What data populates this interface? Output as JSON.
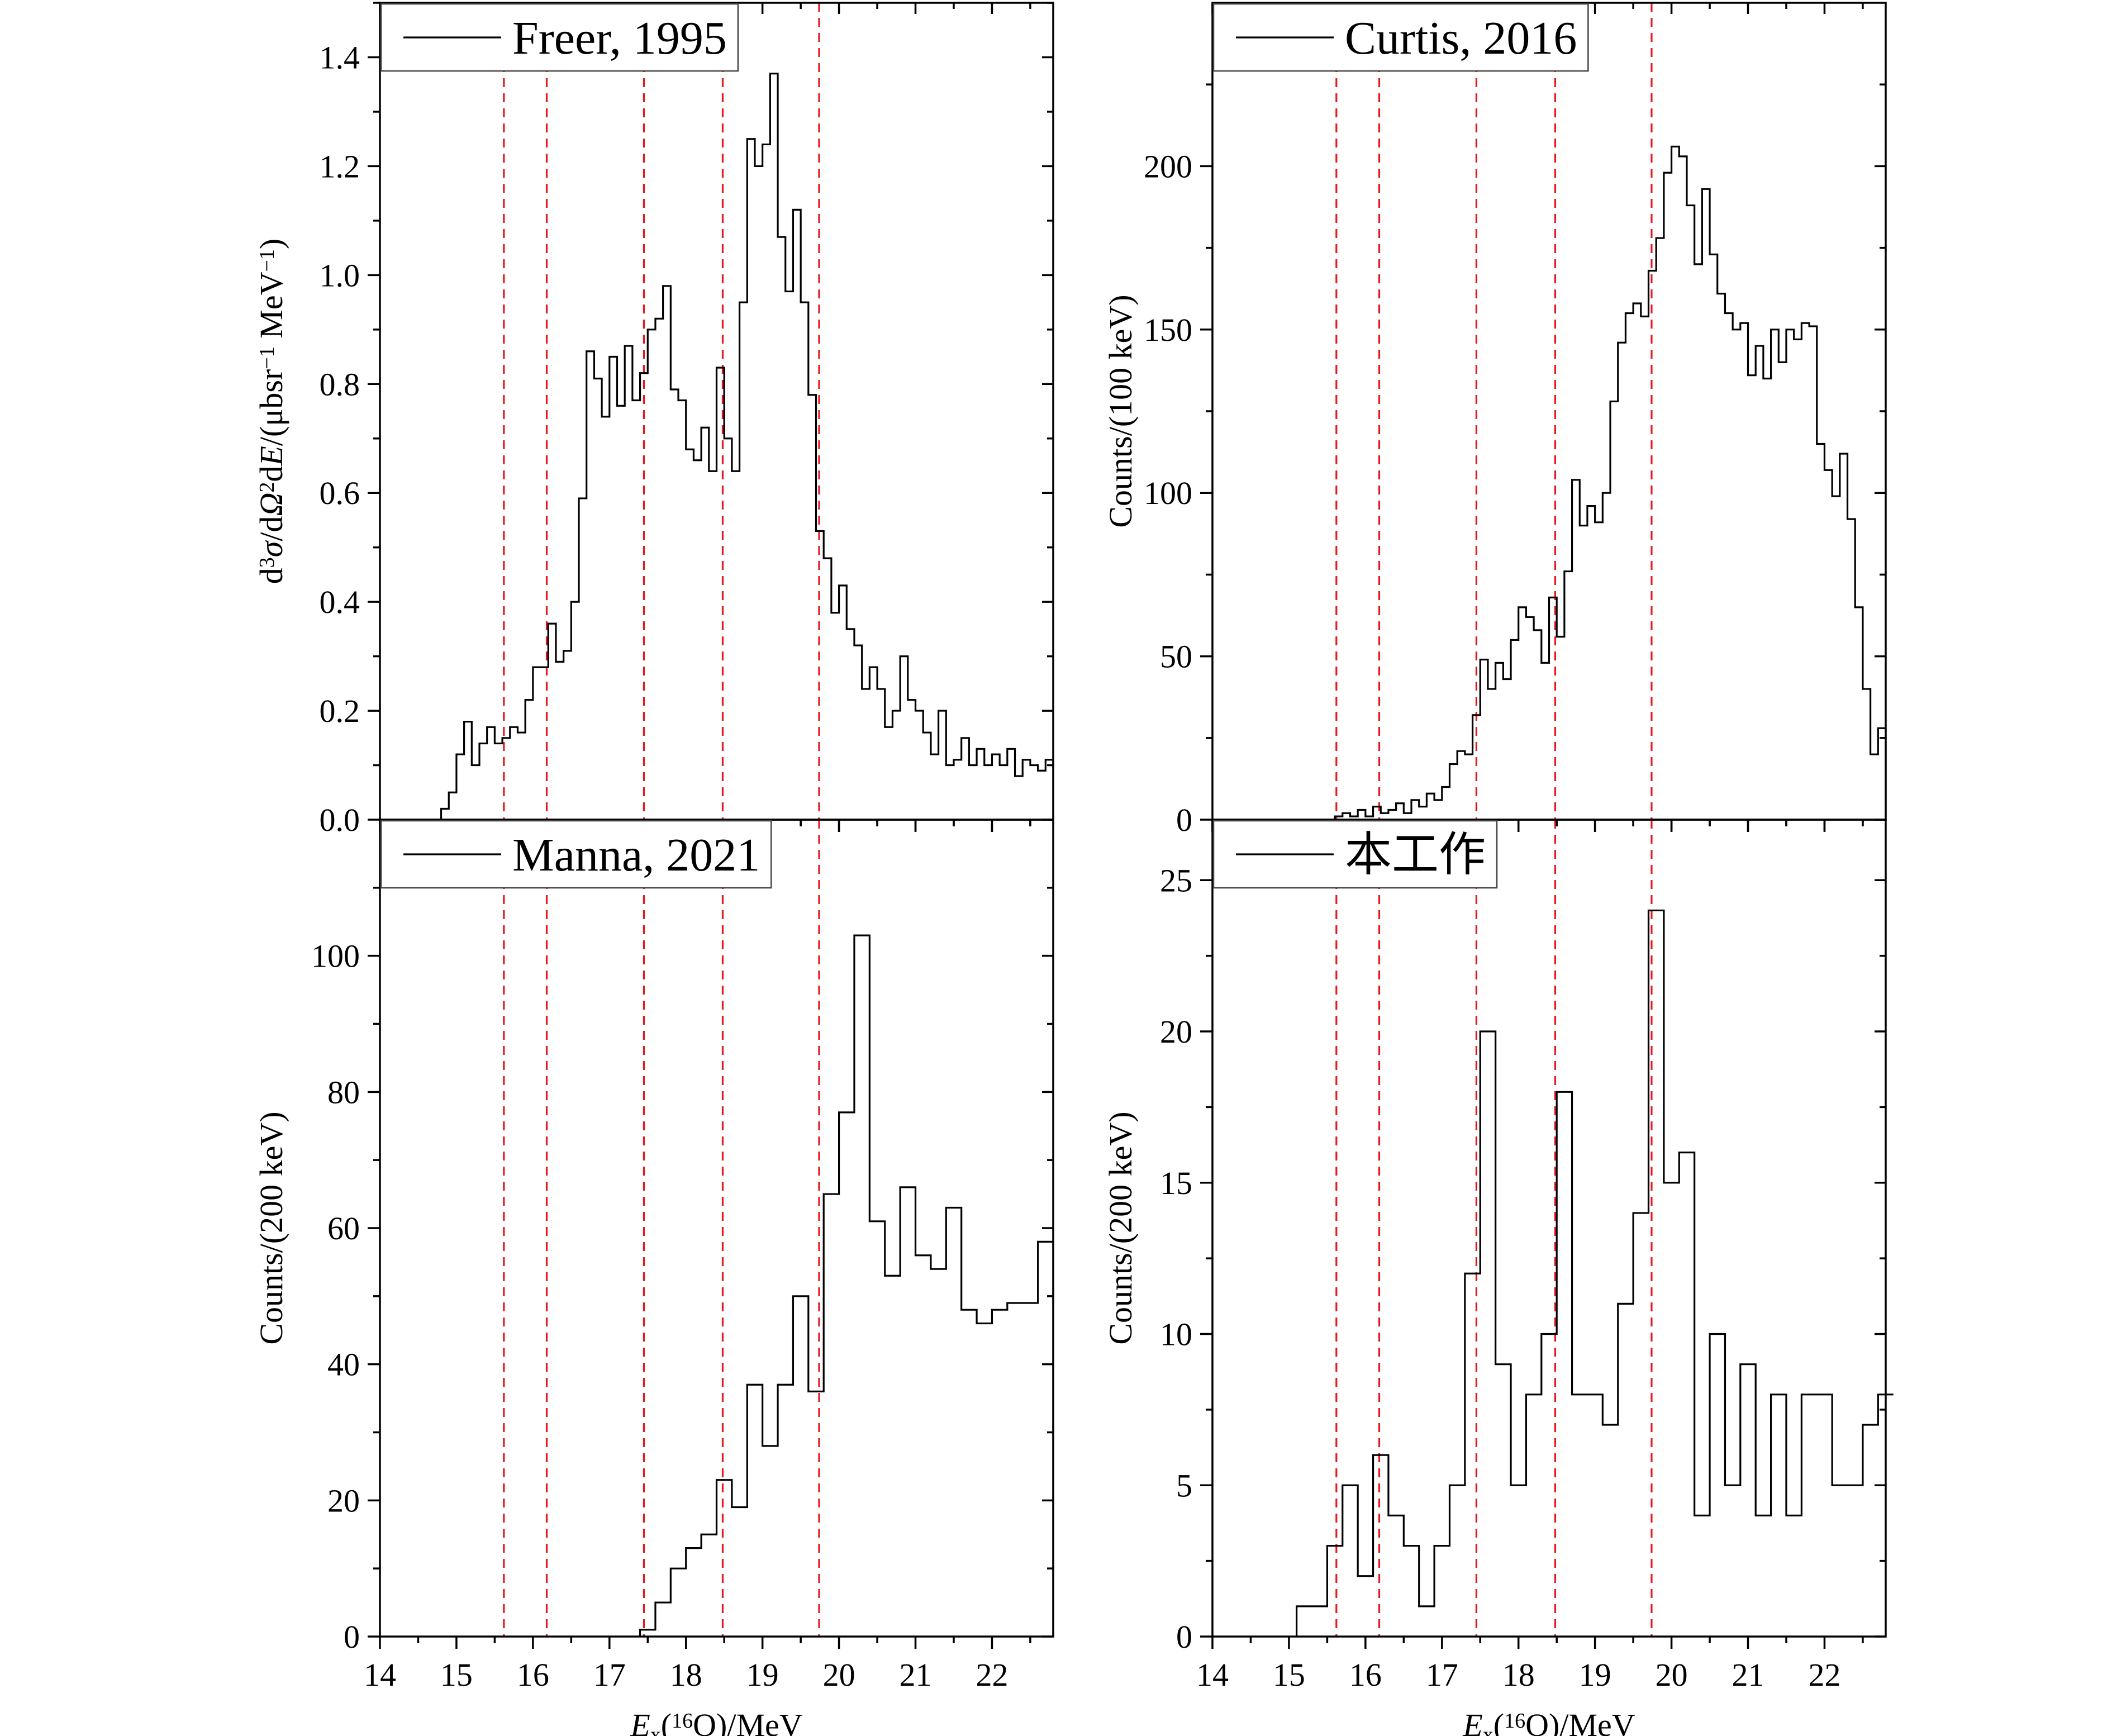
{
  "x_axis": {
    "label_prefix": "E",
    "label_sub": "x",
    "label_open": "(",
    "label_sup": "16",
    "label_rest": "O)/MeV",
    "range": [
      14,
      22.8
    ],
    "ticks": [
      14,
      15,
      16,
      17,
      18,
      19,
      20,
      21,
      22
    ],
    "tick_labels": [
      "14",
      "15",
      "16",
      "17",
      "18",
      "19",
      "20",
      "21",
      "22"
    ]
  },
  "reference_lines": [
    15.62,
    16.18,
    17.45,
    18.48,
    19.74
  ],
  "reference_color": "#e41a1c",
  "line_color": "#000000",
  "chart_data": [
    {
      "type": "histogram",
      "legend": "Freer, 1995",
      "ylabel_parts": {
        "a": "d",
        "a_sup": "3",
        "b": "σ",
        "c": "/d",
        "d": "Ω",
        "d_sup": "2",
        "e": "d",
        "f": "E",
        "g": "/(μbsr",
        "g_sup": "−1",
        "h": " MeV",
        "h_sup": "−1",
        "i": ")"
      },
      "ylim": [
        0,
        1.5
      ],
      "yticks": [
        0.0,
        0.2,
        0.4,
        0.6,
        0.8,
        1.0,
        1.2,
        1.4
      ],
      "ytick_labels": [
        "0.0",
        "0.2",
        "0.4",
        "0.6",
        "0.8",
        "1.0",
        "1.2",
        "1.4"
      ],
      "bin_width": 0.1,
      "x": [
        14.7,
        14.8,
        14.9,
        15.0,
        15.1,
        15.2,
        15.3,
        15.4,
        15.5,
        15.6,
        15.7,
        15.8,
        15.9,
        16.0,
        16.1,
        16.2,
        16.3,
        16.4,
        16.5,
        16.6,
        16.7,
        16.8,
        16.9,
        17.0,
        17.1,
        17.2,
        17.3,
        17.4,
        17.5,
        17.6,
        17.7,
        17.8,
        17.9,
        18.0,
        18.1,
        18.2,
        18.3,
        18.4,
        18.5,
        18.6,
        18.7,
        18.8,
        18.9,
        19.0,
        19.1,
        19.2,
        19.3,
        19.4,
        19.5,
        19.6,
        19.7,
        19.8,
        19.9,
        20.0,
        20.1,
        20.2,
        20.3,
        20.4,
        20.5,
        20.6,
        20.7,
        20.8,
        20.9,
        21.0,
        21.1,
        21.2,
        21.3,
        21.4,
        21.5,
        21.6,
        21.7,
        21.8,
        21.9,
        22.0,
        22.1,
        22.2,
        22.3,
        22.4,
        22.5,
        22.6,
        22.7
      ],
      "values": [
        0.0,
        0.02,
        0.05,
        0.12,
        0.18,
        0.1,
        0.14,
        0.17,
        0.14,
        0.15,
        0.17,
        0.16,
        0.22,
        0.28,
        0.28,
        0.36,
        0.29,
        0.31,
        0.4,
        0.59,
        0.86,
        0.81,
        0.74,
        0.85,
        0.76,
        0.87,
        0.77,
        0.82,
        0.9,
        0.92,
        0.98,
        0.79,
        0.77,
        0.68,
        0.66,
        0.72,
        0.64,
        0.83,
        0.7,
        0.64,
        0.95,
        1.25,
        1.2,
        1.24,
        1.37,
        1.07,
        0.97,
        1.12,
        0.95,
        0.78,
        0.53,
        0.48,
        0.38,
        0.43,
        0.35,
        0.32,
        0.24,
        0.28,
        0.24,
        0.17,
        0.2,
        0.3,
        0.22,
        0.2,
        0.16,
        0.12,
        0.2,
        0.1,
        0.11,
        0.15,
        0.1,
        0.13,
        0.1,
        0.12,
        0.1,
        0.13,
        0.08,
        0.11,
        0.1,
        0.09,
        0.11
      ]
    },
    {
      "type": "histogram",
      "legend": "Curtis, 2016",
      "ylabel": "Counts/(100 keV)",
      "ylim": [
        0,
        250
      ],
      "yticks": [
        0,
        50,
        100,
        150,
        200
      ],
      "ytick_labels": [
        "0",
        "50",
        "100",
        "150",
        "200"
      ],
      "bin_width": 0.1,
      "x": [
        15.6,
        15.7,
        15.8,
        15.9,
        16.0,
        16.1,
        16.2,
        16.3,
        16.4,
        16.5,
        16.6,
        16.7,
        16.8,
        16.9,
        17.0,
        17.1,
        17.2,
        17.3,
        17.4,
        17.5,
        17.6,
        17.7,
        17.8,
        17.9,
        18.0,
        18.1,
        18.2,
        18.3,
        18.4,
        18.5,
        18.6,
        18.7,
        18.8,
        18.9,
        19.0,
        19.1,
        19.2,
        19.3,
        19.4,
        19.5,
        19.6,
        19.7,
        19.8,
        19.9,
        20.0,
        20.1,
        20.2,
        20.3,
        20.4,
        20.5,
        20.6,
        20.7,
        20.8,
        20.9,
        21.0,
        21.1,
        21.2,
        21.3,
        21.4,
        21.5,
        21.6,
        21.7,
        21.8,
        21.9,
        22.0,
        22.1,
        22.2,
        22.3,
        22.4,
        22.5,
        22.6,
        22.7
      ],
      "values": [
        1,
        2,
        1,
        3,
        1,
        4,
        2,
        3,
        5,
        2,
        6,
        4,
        8,
        6,
        10,
        17,
        21,
        20,
        32,
        49,
        40,
        48,
        43,
        55,
        65,
        62,
        58,
        48,
        68,
        56,
        76,
        104,
        90,
        96,
        91,
        100,
        128,
        146,
        155,
        158,
        154,
        168,
        178,
        198,
        206,
        203,
        188,
        170,
        193,
        173,
        161,
        155,
        150,
        152,
        136,
        145,
        135,
        150,
        140,
        150,
        147,
        152,
        151,
        115,
        107,
        99,
        112,
        92,
        65,
        40,
        20,
        28
      ]
    },
    {
      "type": "histogram",
      "legend": "Manna, 2021",
      "ylabel": "Counts/(200 keV)",
      "ylim": [
        0,
        120
      ],
      "yticks": [
        0,
        20,
        40,
        60,
        80,
        100
      ],
      "ytick_labels": [
        "0",
        "20",
        "40",
        "60",
        "80",
        "100"
      ],
      "bin_width": 0.2,
      "x": [
        17.4,
        17.6,
        17.8,
        18.0,
        18.2,
        18.4,
        18.6,
        18.8,
        19.0,
        19.2,
        19.4,
        19.6,
        19.8,
        20.0,
        20.2,
        20.4,
        20.6,
        20.8,
        21.0,
        21.2,
        21.4,
        21.6,
        21.8,
        22.0,
        22.2,
        22.4,
        22.6
      ],
      "values": [
        1,
        5,
        10,
        13,
        15,
        23,
        19,
        37,
        28,
        37,
        50,
        36,
        65,
        77,
        103,
        61,
        53,
        66,
        56,
        54,
        63,
        48,
        46,
        48,
        49,
        49,
        58
      ]
    },
    {
      "type": "histogram",
      "legend": "本工作",
      "ylabel": "Counts/(200 keV)",
      "ylim": [
        0,
        27
      ],
      "yticks": [
        0,
        5,
        10,
        15,
        20,
        25
      ],
      "ytick_labels": [
        "0",
        "5",
        "10",
        "15",
        "20",
        "25"
      ],
      "bin_width": 0.2,
      "x": [
        15.1,
        15.3,
        15.5,
        15.7,
        15.9,
        16.1,
        16.3,
        16.5,
        16.7,
        16.9,
        17.1,
        17.3,
        17.5,
        17.7,
        17.9,
        18.1,
        18.3,
        18.5,
        18.7,
        18.9,
        19.1,
        19.3,
        19.5,
        19.7,
        19.9,
        20.1,
        20.3,
        20.5,
        20.7,
        20.9,
        21.1,
        21.3,
        21.5,
        21.7,
        21.9,
        22.1,
        22.3,
        22.5,
        22.7
      ],
      "values": [
        1,
        1,
        3,
        5,
        2,
        6,
        4,
        3,
        1,
        3,
        5,
        12,
        20,
        9,
        5,
        8,
        10,
        18,
        8,
        8,
        7,
        11,
        14,
        24,
        15,
        16,
        4,
        10,
        5,
        9,
        4,
        8,
        4,
        8,
        8,
        5,
        5,
        7,
        8
      ]
    }
  ]
}
